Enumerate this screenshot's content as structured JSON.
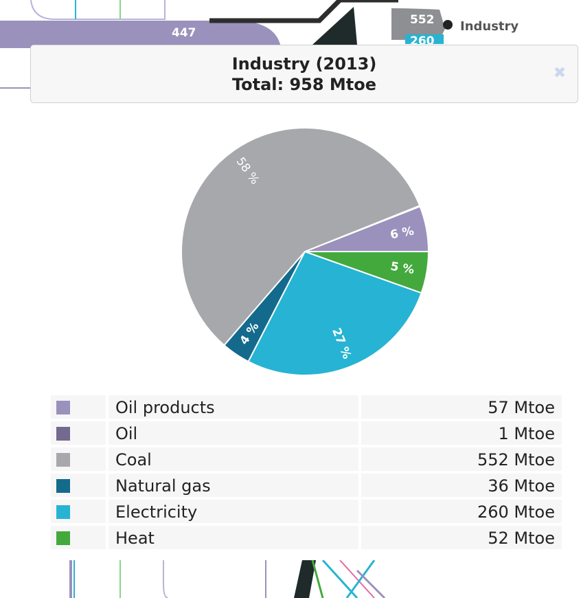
{
  "background": {
    "flow_value_left": "447",
    "flow_value_coal": "552",
    "flow_value_electricity": "260",
    "node_label": "Industry"
  },
  "tooltip": {
    "title": "Industry (2013)",
    "total": "Total: 958 Mtoe",
    "close_icon": "close-icon"
  },
  "colors": {
    "oil_products": "#9a91bc",
    "oil": "#74698f",
    "coal": "#a7a8ab",
    "natural_gas": "#146a8c",
    "electricity": "#27b3d3",
    "heat": "#43a93d"
  },
  "chart_data": {
    "type": "pie",
    "unit": "Mtoe",
    "slices": [
      {
        "name": "Oil products",
        "value": 57,
        "color": "#9a91bc",
        "label": "6 %"
      },
      {
        "name": "Oil",
        "value": 1,
        "color": "#74698f",
        "label": ""
      },
      {
        "name": "Coal",
        "value": 552,
        "color": "#a7a8ab",
        "label": "58 %"
      },
      {
        "name": "Natural gas",
        "value": 36,
        "color": "#146a8c",
        "label": "4 %"
      },
      {
        "name": "Electricity",
        "value": 260,
        "color": "#27b3d3",
        "label": "27 %"
      },
      {
        "name": "Heat",
        "value": 52,
        "color": "#43a93d",
        "label": "5 %"
      }
    ]
  },
  "legend": [
    {
      "name": "Oil products",
      "value": "57 Mtoe",
      "color": "#9a91bc"
    },
    {
      "name": "Oil",
      "value": "1 Mtoe",
      "color": "#74698f"
    },
    {
      "name": "Coal",
      "value": "552 Mtoe",
      "color": "#a7a8ab"
    },
    {
      "name": "Natural gas",
      "value": "36 Mtoe",
      "color": "#146a8c"
    },
    {
      "name": "Electricity",
      "value": "260 Mtoe",
      "color": "#27b3d3"
    },
    {
      "name": "Heat",
      "value": "52 Mtoe",
      "color": "#43a93d"
    }
  ]
}
